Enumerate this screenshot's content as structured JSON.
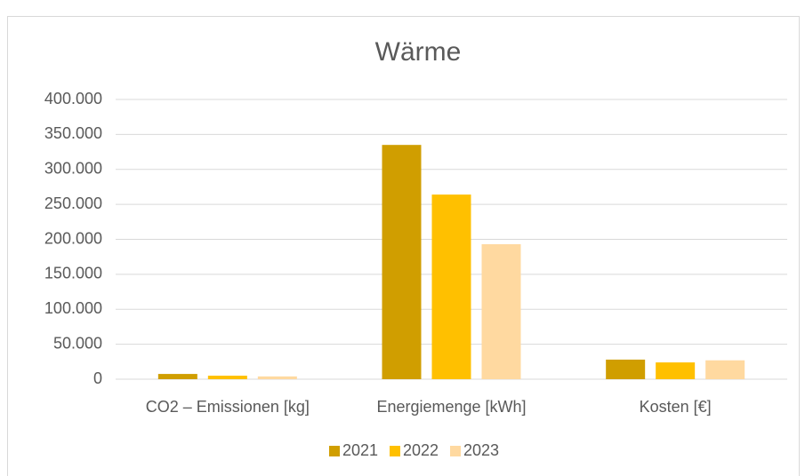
{
  "chart_data": {
    "type": "bar",
    "title": "Wärme",
    "categories": [
      "CO2 – Emissionen [kg]",
      "Energiemenge [kWh]",
      "Kosten [€]"
    ],
    "series": [
      {
        "name": "2021",
        "color": "#d09e00",
        "values": [
          7500,
          335000,
          28000
        ]
      },
      {
        "name": "2022",
        "color": "#ffc000",
        "values": [
          5000,
          264000,
          24000
        ]
      },
      {
        "name": "2023",
        "color": "#ffd9a0",
        "values": [
          4000,
          193000,
          27000
        ]
      }
    ],
    "ylim": [
      0,
      400000
    ],
    "yticks": [
      0,
      {
        "value": 50000,
        "label": "50.000"
      },
      {
        "value": 100000,
        "label": "100.000"
      },
      {
        "value": 150000,
        "label": "150.000"
      },
      {
        "value": 200000,
        "label": "200.000"
      },
      {
        "value": 250000,
        "label": "250.000"
      },
      {
        "value": 300000,
        "label": "300.000"
      },
      {
        "value": 350000,
        "label": "350.000"
      },
      {
        "value": 400000,
        "label": "400.000"
      }
    ],
    "grid": true,
    "legend": "bottom"
  }
}
